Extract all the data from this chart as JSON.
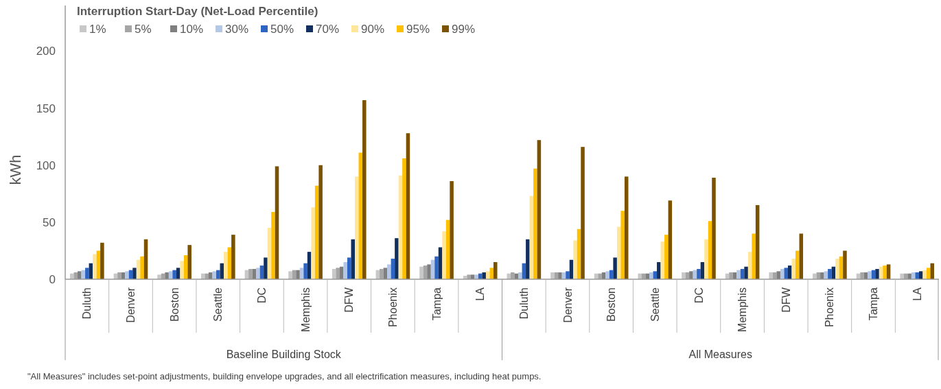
{
  "chart_data": {
    "type": "bar",
    "ylabel": "kWh",
    "legend_title": "Interruption Start-Day (Net-Load Percentile)",
    "legend": "top left",
    "grid": false,
    "ylim": [
      0,
      240
    ],
    "yticks": [
      0,
      50,
      100,
      150,
      200
    ],
    "categories": [
      "Duluth",
      "Denver",
      "Boston",
      "Seattle",
      "DC",
      "Memphis",
      "DFW",
      "Phoenix",
      "Tampa",
      "LA",
      "Duluth",
      "Denver",
      "Boston",
      "Seattle",
      "DC",
      "Memphis",
      "DFW",
      "Phoenix",
      "Tampa",
      "LA"
    ],
    "series": [
      {
        "name": "1%",
        "color": "#c8c8c8",
        "values": [
          5,
          5,
          4,
          5,
          8,
          7,
          9,
          8,
          11,
          3,
          5,
          6,
          5,
          5,
          6,
          5,
          6,
          5,
          5,
          5
        ]
      },
      {
        "name": "5%",
        "color": "#a5a5a5",
        "values": [
          6,
          6,
          5,
          5,
          9,
          8,
          10,
          9,
          12,
          4,
          6,
          6,
          5,
          5,
          6,
          6,
          6,
          6,
          6,
          5
        ]
      },
      {
        "name": "10%",
        "color": "#7f7f7f",
        "values": [
          7,
          6,
          6,
          6,
          9,
          8,
          11,
          10,
          13,
          4,
          5,
          6,
          6,
          5,
          7,
          6,
          7,
          6,
          6,
          5
        ]
      },
      {
        "name": "30%",
        "color": "#b4c7e7",
        "values": [
          8,
          7,
          7,
          7,
          10,
          10,
          15,
          13,
          17,
          4,
          6,
          6,
          7,
          6,
          8,
          8,
          9,
          7,
          7,
          6
        ]
      },
      {
        "name": "50%",
        "color": "#2e64c2",
        "values": [
          10,
          8,
          8,
          8,
          12,
          14,
          19,
          18,
          20,
          5,
          14,
          7,
          8,
          7,
          9,
          9,
          10,
          9,
          8,
          6
        ]
      },
      {
        "name": "70%",
        "color": "#12305f",
        "values": [
          14,
          10,
          10,
          14,
          19,
          24,
          35,
          36,
          28,
          6,
          35,
          17,
          19,
          15,
          15,
          11,
          12,
          11,
          9,
          7
        ]
      },
      {
        "name": "90%",
        "color": "#ffe699",
        "values": [
          22,
          17,
          16,
          24,
          45,
          63,
          90,
          91,
          42,
          7,
          73,
          34,
          46,
          33,
          35,
          24,
          18,
          18,
          11,
          8
        ]
      },
      {
        "name": "95%",
        "color": "#ffc000",
        "values": [
          25,
          20,
          21,
          28,
          59,
          82,
          111,
          106,
          52,
          10,
          97,
          44,
          60,
          39,
          51,
          40,
          25,
          20,
          12,
          10
        ]
      },
      {
        "name": "99%",
        "color": "#7a5200",
        "values": [
          32,
          35,
          30,
          39,
          99,
          100,
          157,
          128,
          86,
          15,
          122,
          116,
          90,
          69,
          89,
          65,
          40,
          25,
          13,
          14
        ]
      }
    ],
    "annotations": [
      "Baseline Building Stock",
      "All Measures",
      "\"All Measures\" includes set-point adjustments, building  envelope upgrades, and all electrification measures, including  heat pumps."
    ]
  }
}
